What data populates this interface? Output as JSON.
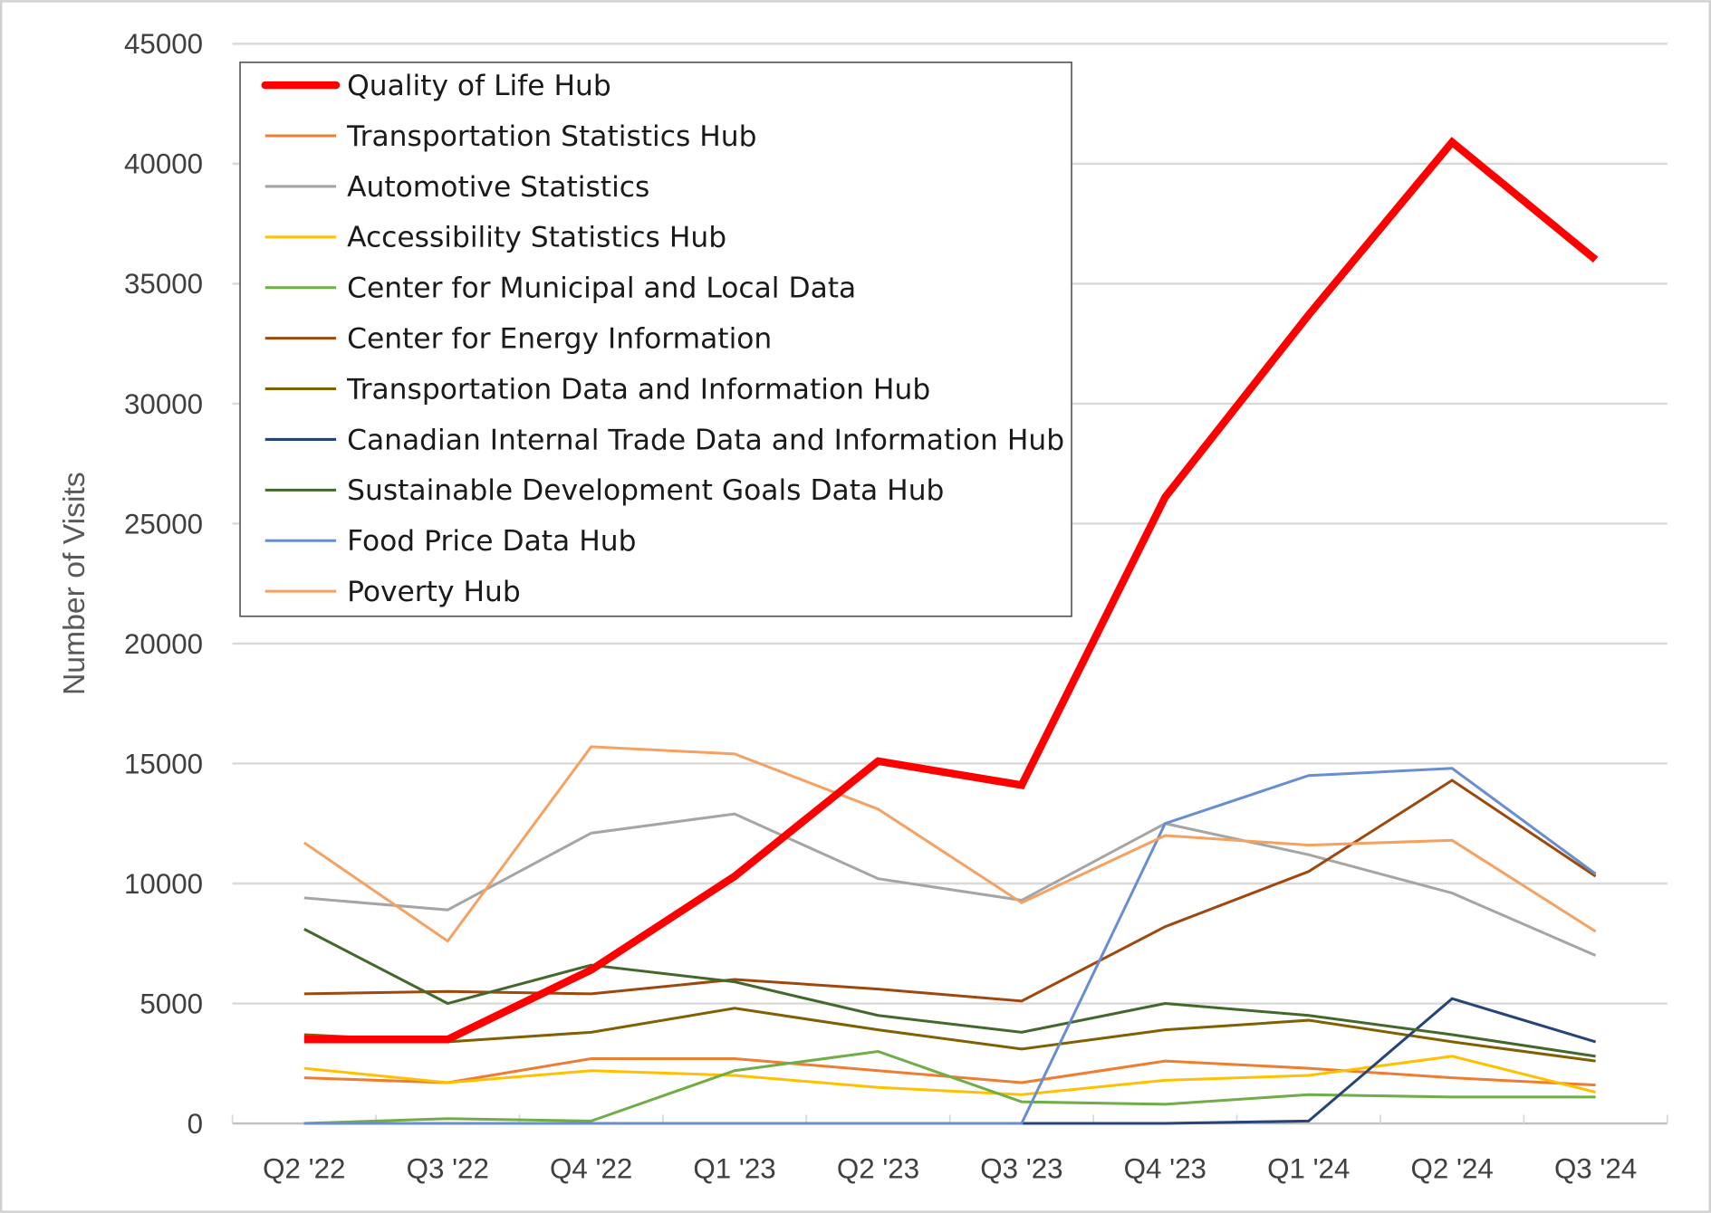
{
  "chart_data": {
    "type": "line",
    "title": "",
    "xlabel": "",
    "ylabel": "Number of Visits",
    "ylim": [
      0,
      45000
    ],
    "yticks": [
      0,
      5000,
      10000,
      15000,
      20000,
      25000,
      30000,
      35000,
      40000,
      45000
    ],
    "grid": true,
    "legend_position": "top-left",
    "categories": [
      "Q2 '22",
      "Q3 '22",
      "Q4 '22",
      "Q1 '23",
      "Q2 '23",
      "Q3 '23",
      "Q4 '23",
      "Q1 '24",
      "Q2 '24",
      "Q3 '24"
    ],
    "series": [
      {
        "name": "Quality of Life Hub",
        "color": "#ff0000",
        "bold": true,
        "values": [
          3500,
          3500,
          6400,
          10300,
          15100,
          14100,
          26100,
          33700,
          40900,
          36000
        ]
      },
      {
        "name": "Transportation Statistics Hub",
        "color": "#ed7d31",
        "values": [
          1900,
          1700,
          2700,
          2700,
          2200,
          1700,
          2600,
          2300,
          1900,
          1600
        ]
      },
      {
        "name": "Automotive Statistics",
        "color": "#a5a5a5",
        "values": [
          9400,
          8900,
          12100,
          12900,
          10200,
          9300,
          12500,
          11200,
          9600,
          7000
        ]
      },
      {
        "name": "Accessibility Statistics Hub",
        "color": "#ffc000",
        "values": [
          2300,
          1700,
          2200,
          2000,
          1500,
          1200,
          1800,
          2000,
          2800,
          1300
        ]
      },
      {
        "name": "Center for Municipal and Local Data",
        "color": "#70ad47",
        "values": [
          0,
          200,
          100,
          2200,
          3000,
          900,
          800,
          1200,
          1100,
          1100
        ]
      },
      {
        "name": "Center for Energy Information",
        "color": "#9e480e",
        "values": [
          5400,
          5500,
          5400,
          6000,
          5600,
          5100,
          8200,
          10500,
          14300,
          10300
        ]
      },
      {
        "name": "Transportation Data and Information Hub",
        "color": "#806000",
        "values": [
          3700,
          3400,
          3800,
          4800,
          3900,
          3100,
          3900,
          4300,
          3400,
          2600
        ]
      },
      {
        "name": "Canadian Internal Trade Data and Information Hub",
        "color": "#264478",
        "values": [
          0,
          0,
          0,
          0,
          0,
          0,
          0,
          100,
          5200,
          3400
        ]
      },
      {
        "name": "Sustainable Development Goals Data Hub",
        "color": "#43682b",
        "values": [
          8100,
          5000,
          6600,
          5900,
          4500,
          3800,
          5000,
          4500,
          3700,
          2800
        ]
      },
      {
        "name": "Food Price Data Hub",
        "color": "#698ed0",
        "values": [
          0,
          0,
          0,
          0,
          0,
          0,
          12500,
          14500,
          14800,
          10400
        ]
      },
      {
        "name": "Poverty Hub",
        "color": "#f4a161",
        "values": [
          11700,
          7600,
          15700,
          15400,
          13100,
          9200,
          12000,
          11600,
          11800,
          8000
        ]
      }
    ]
  }
}
